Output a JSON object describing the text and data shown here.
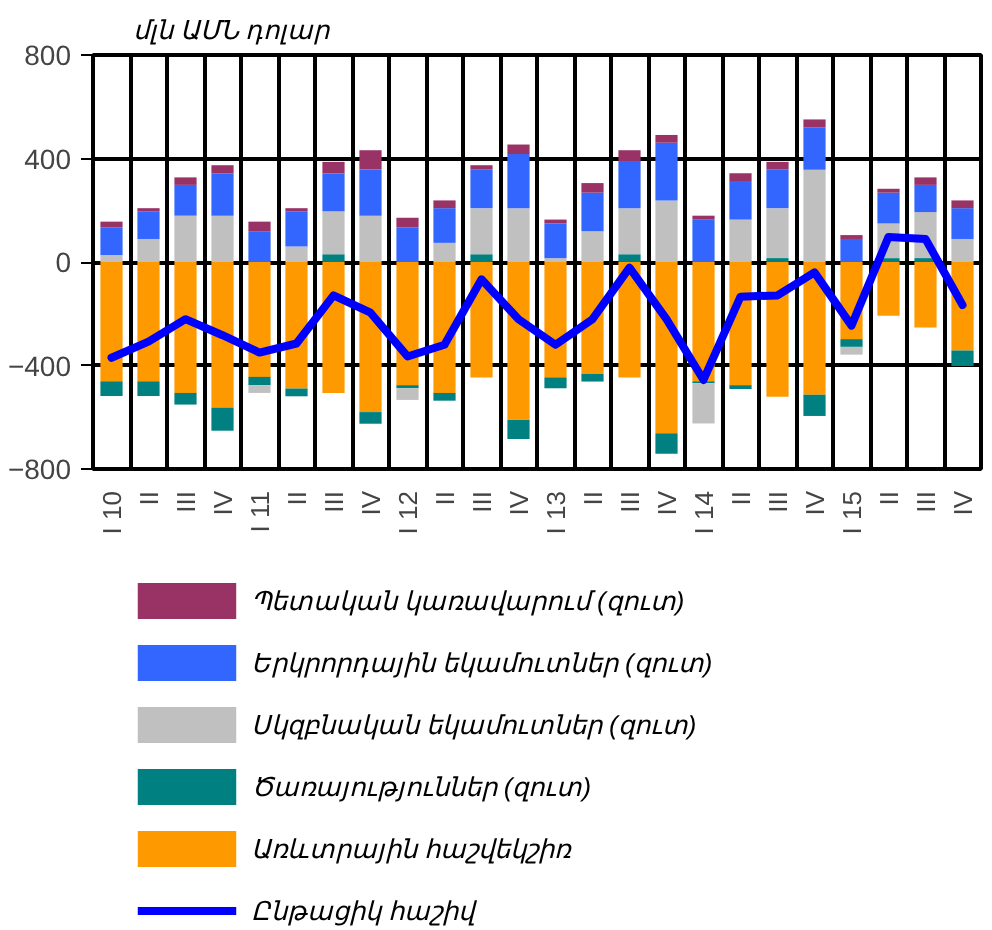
{
  "chart_data": {
    "type": "bar",
    "stacked": true,
    "ylabel": "մլն ԱՄՆ դոլար",
    "categories": [
      "I 10",
      "II",
      "III",
      "IV",
      "I 11",
      "II",
      "III",
      "IV",
      "I 12",
      "II",
      "III",
      "IV",
      "I 13",
      "II",
      "III",
      "IV",
      "I 14",
      "II",
      "III",
      "IV",
      "I 15",
      "II",
      "III",
      "IV"
    ],
    "series": [
      {
        "name": "Առևտրային հաշվեկշիռ",
        "color": "#ff9900",
        "values": [
          -461,
          -461,
          -506,
          -563,
          -444,
          -489,
          -506,
          -580,
          -476,
          -506,
          -446,
          -610,
          -446,
          -432,
          -446,
          -662,
          -461,
          -476,
          -521,
          -513,
          -298,
          -208,
          -253,
          -342
        ]
      },
      {
        "name": "Ծառայություններ (զուտ)",
        "color": "#008080",
        "values": [
          -57,
          -57,
          -45,
          -89,
          -32,
          -30,
          30,
          -45,
          -12,
          -30,
          30,
          -74,
          -42,
          -30,
          30,
          -79,
          -7,
          -15,
          15,
          -82,
          -30,
          15,
          15,
          -60
        ]
      },
      {
        "name": "Սկզբնական եկամուտներ (զուտ)",
        "color": "#c0c0c0",
        "values": [
          27,
          89,
          179,
          179,
          -30,
          60,
          166,
          179,
          -45,
          74,
          178,
          208,
          15,
          119,
          178,
          238,
          -156,
          164,
          193,
          357,
          -30,
          134,
          178,
          89
        ]
      },
      {
        "name": "Երկրորդային եկամուտներ (զուտ)",
        "color": "#3366ff",
        "values": [
          107,
          107,
          119,
          163,
          119,
          136,
          146,
          178,
          134,
          134,
          149,
          209,
          134,
          149,
          179,
          223,
          164,
          149,
          149,
          164,
          89,
          119,
          105,
          119
        ]
      },
      {
        "name": "Պետական կառավարում (զուտ)",
        "color": "#993366",
        "values": [
          22,
          12,
          29,
          32,
          37,
          12,
          45,
          75,
          37,
          30,
          17,
          37,
          15,
          37,
          45,
          30,
          15,
          30,
          30,
          30,
          15,
          15,
          29,
          30
        ]
      },
      {
        "name": "Ընթացիկ հաշիվ",
        "type": "line",
        "color": "#0000ff",
        "values": [
          -370,
          -308,
          -221,
          -283,
          -350,
          -315,
          -129,
          -196,
          -365,
          -320,
          -67,
          -221,
          -320,
          -221,
          -22,
          -221,
          -456,
          -134,
          -129,
          -40,
          -246,
          97,
          89,
          -166
        ]
      }
    ],
    "ylim": [
      -800,
      800
    ],
    "yticks": [
      -800,
      -400,
      0,
      400,
      800
    ],
    "grid": true,
    "legend": "bottom"
  }
}
